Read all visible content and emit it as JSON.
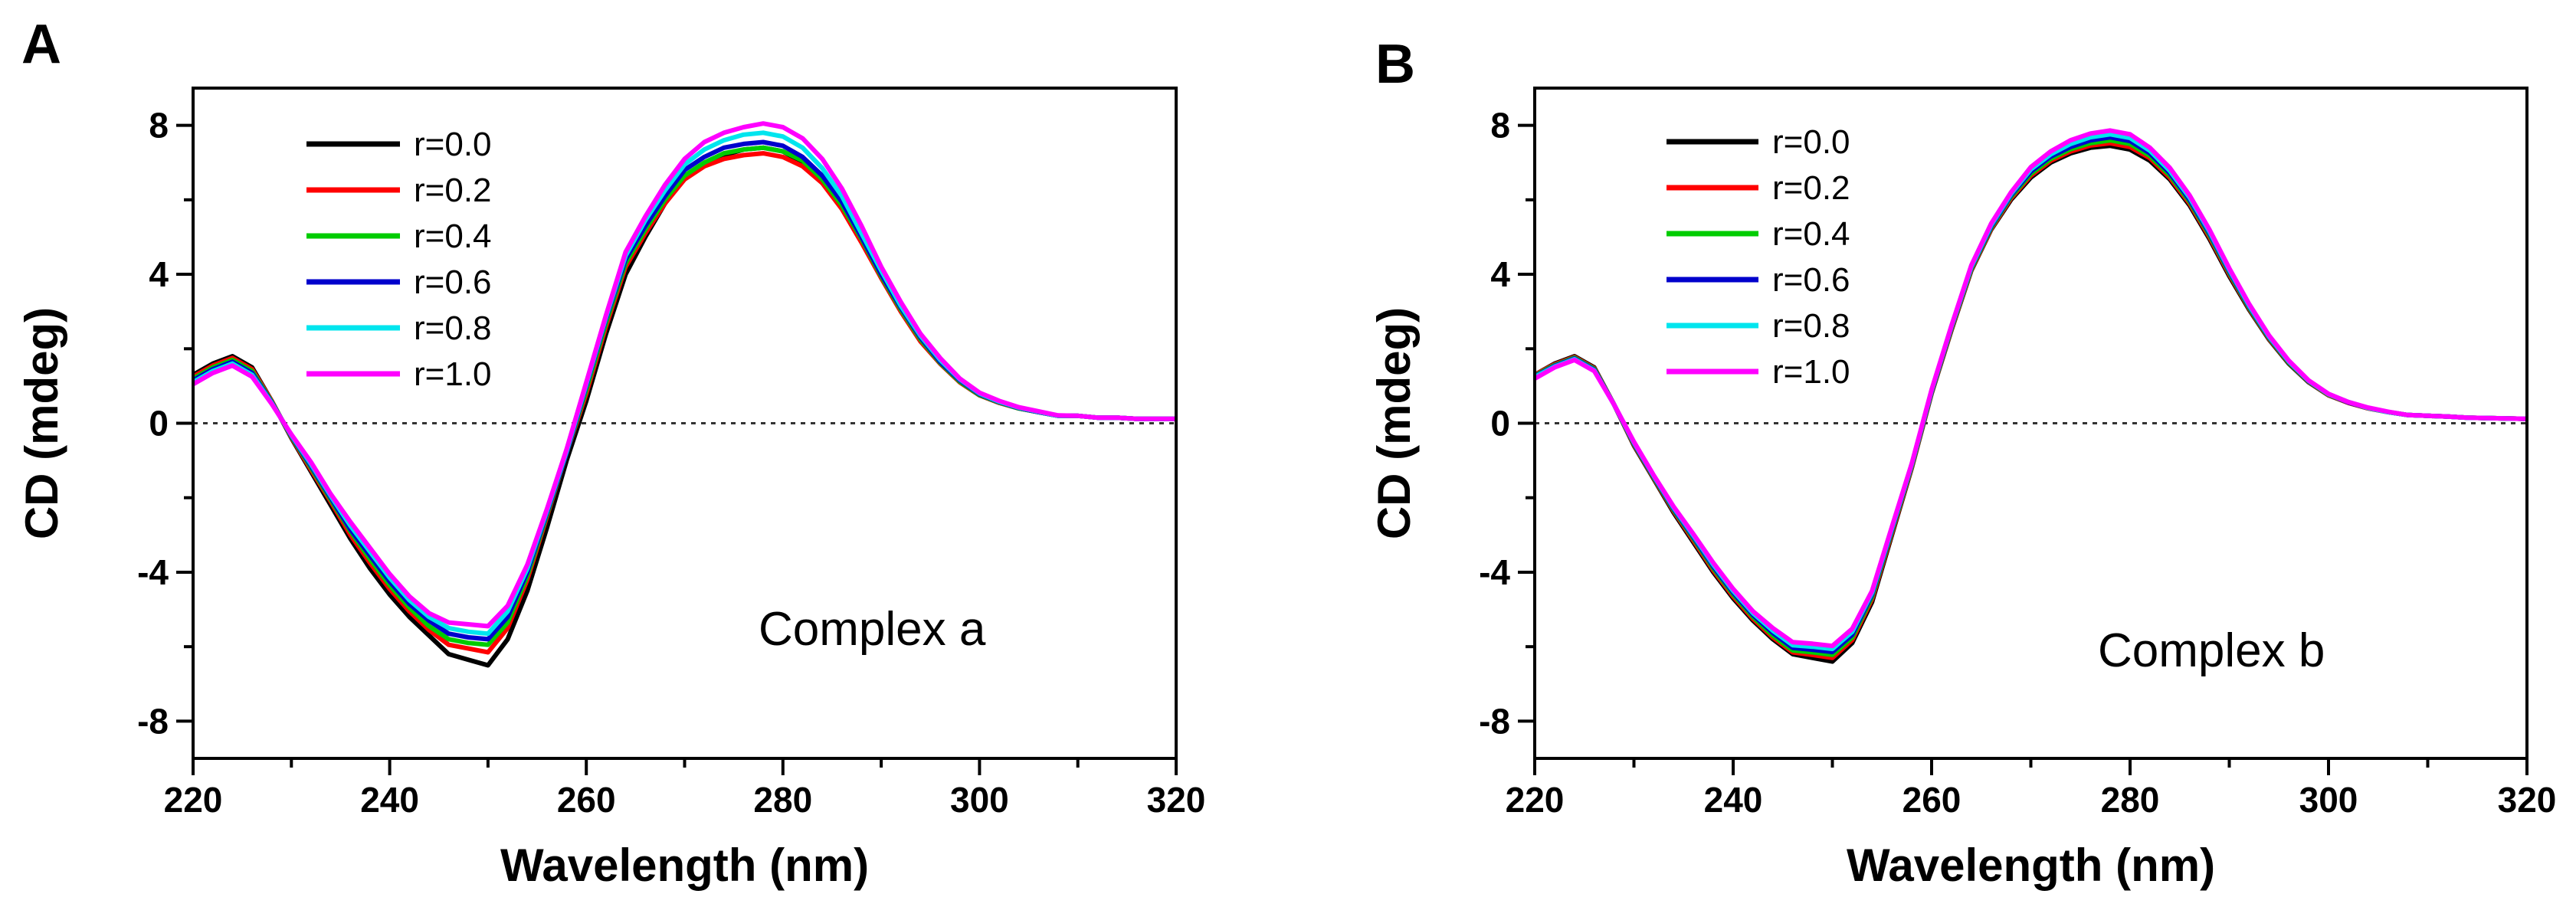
{
  "chart_data": [
    {
      "type": "line",
      "panel_label": "A",
      "xlabel": "Wavelength (nm)",
      "ylabel": "CD (mdeg)",
      "xlim": [
        220,
        320
      ],
      "ylim": [
        -9,
        9
      ],
      "xticks": [
        220,
        240,
        260,
        280,
        300,
        320
      ],
      "yticks": [
        -8,
        -4,
        0,
        4,
        8
      ],
      "grid": false,
      "zero_line": true,
      "legend_position": "top-left",
      "annotation": "Complex a",
      "x": [
        220,
        222,
        224,
        226,
        228,
        230,
        232,
        234,
        236,
        238,
        240,
        242,
        244,
        246,
        248,
        250,
        252,
        254,
        256,
        258,
        260,
        262,
        264,
        266,
        268,
        270,
        272,
        274,
        276,
        278,
        280,
        282,
        284,
        286,
        288,
        290,
        292,
        294,
        296,
        298,
        300,
        302,
        304,
        306,
        308,
        310,
        312,
        314,
        316,
        318,
        320
      ],
      "series": [
        {
          "name": "r=0.0",
          "color": "#000000",
          "values": [
            1.3,
            1.6,
            1.8,
            1.5,
            0.6,
            -0.4,
            -1.3,
            -2.2,
            -3.1,
            -3.9,
            -4.6,
            -5.2,
            -5.7,
            -6.2,
            -6.35,
            -6.5,
            -5.8,
            -4.5,
            -2.8,
            -1.0,
            0.6,
            2.4,
            4.0,
            5.0,
            5.9,
            6.6,
            6.95,
            7.2,
            7.35,
            7.4,
            7.3,
            7.0,
            6.5,
            5.8,
            4.9,
            3.9,
            3.0,
            2.2,
            1.6,
            1.1,
            0.75,
            0.55,
            0.4,
            0.3,
            0.2,
            0.2,
            0.15,
            0.15,
            0.12,
            0.12,
            0.12
          ]
        },
        {
          "name": "r=0.2",
          "color": "#ff0000",
          "values": [
            1.25,
            1.55,
            1.75,
            1.45,
            0.6,
            -0.38,
            -1.25,
            -2.1,
            -3.0,
            -3.75,
            -4.45,
            -5.05,
            -5.55,
            -5.95,
            -6.05,
            -6.15,
            -5.5,
            -4.2,
            -2.5,
            -0.8,
            0.8,
            2.6,
            4.2,
            5.1,
            5.9,
            6.55,
            6.9,
            7.1,
            7.2,
            7.25,
            7.15,
            6.9,
            6.45,
            5.75,
            4.85,
            3.9,
            3.0,
            2.2,
            1.6,
            1.1,
            0.75,
            0.55,
            0.4,
            0.3,
            0.2,
            0.2,
            0.15,
            0.15,
            0.12,
            0.12,
            0.12
          ]
        },
        {
          "name": "r=0.4",
          "color": "#00cc00",
          "values": [
            1.2,
            1.5,
            1.7,
            1.4,
            0.58,
            -0.36,
            -1.2,
            -2.05,
            -2.9,
            -3.65,
            -4.35,
            -4.95,
            -5.45,
            -5.8,
            -5.9,
            -5.95,
            -5.35,
            -4.1,
            -2.45,
            -0.8,
            0.9,
            2.7,
            4.3,
            5.2,
            6.0,
            6.65,
            7.0,
            7.25,
            7.35,
            7.4,
            7.3,
            7.05,
            6.55,
            5.85,
            4.95,
            3.95,
            3.05,
            2.25,
            1.62,
            1.12,
            0.76,
            0.56,
            0.4,
            0.3,
            0.2,
            0.2,
            0.15,
            0.15,
            0.12,
            0.12,
            0.12
          ]
        },
        {
          "name": "r=0.6",
          "color": "#0000cc",
          "values": [
            1.15,
            1.45,
            1.65,
            1.35,
            0.56,
            -0.34,
            -1.15,
            -2.0,
            -2.85,
            -3.55,
            -4.25,
            -4.85,
            -5.3,
            -5.65,
            -5.75,
            -5.8,
            -5.2,
            -4.0,
            -2.4,
            -0.8,
            1.0,
            2.8,
            4.4,
            5.3,
            6.1,
            6.8,
            7.15,
            7.4,
            7.5,
            7.55,
            7.45,
            7.15,
            6.65,
            5.95,
            5.0,
            4.0,
            3.1,
            2.3,
            1.65,
            1.15,
            0.78,
            0.57,
            0.41,
            0.3,
            0.2,
            0.2,
            0.15,
            0.15,
            0.12,
            0.12,
            0.12
          ]
        },
        {
          "name": "r=0.8",
          "color": "#00e5ee",
          "values": [
            1.1,
            1.4,
            1.6,
            1.3,
            0.54,
            -0.32,
            -1.1,
            -1.95,
            -2.75,
            -3.45,
            -4.15,
            -4.75,
            -5.2,
            -5.5,
            -5.6,
            -5.65,
            -5.05,
            -3.9,
            -2.35,
            -0.75,
            1.05,
            2.85,
            4.5,
            5.45,
            6.25,
            6.95,
            7.35,
            7.6,
            7.75,
            7.8,
            7.7,
            7.4,
            6.85,
            6.1,
            5.1,
            4.1,
            3.15,
            2.35,
            1.7,
            1.18,
            0.8,
            0.58,
            0.42,
            0.31,
            0.2,
            0.2,
            0.15,
            0.15,
            0.12,
            0.12,
            0.12
          ]
        },
        {
          "name": "r=1.0",
          "color": "#ff00ff",
          "values": [
            1.05,
            1.35,
            1.55,
            1.25,
            0.52,
            -0.3,
            -1.05,
            -1.9,
            -2.65,
            -3.35,
            -4.05,
            -4.65,
            -5.1,
            -5.35,
            -5.4,
            -5.45,
            -4.9,
            -3.8,
            -2.3,
            -0.7,
            1.1,
            2.9,
            4.6,
            5.55,
            6.4,
            7.1,
            7.55,
            7.8,
            7.95,
            8.05,
            7.95,
            7.65,
            7.1,
            6.3,
            5.3,
            4.2,
            3.25,
            2.4,
            1.75,
            1.2,
            0.82,
            0.6,
            0.43,
            0.32,
            0.21,
            0.2,
            0.15,
            0.15,
            0.12,
            0.12,
            0.12
          ]
        }
      ]
    },
    {
      "type": "line",
      "panel_label": "B",
      "xlabel": "Wavelength (nm)",
      "ylabel": "CD (mdeg)",
      "xlim": [
        220,
        320
      ],
      "ylim": [
        -9,
        9
      ],
      "xticks": [
        220,
        240,
        260,
        280,
        300,
        320
      ],
      "yticks": [
        -8,
        -4,
        0,
        4,
        8
      ],
      "grid": false,
      "zero_line": true,
      "legend_position": "top-left",
      "annotation": "Complex b",
      "x": [
        220,
        222,
        224,
        226,
        228,
        230,
        232,
        234,
        236,
        238,
        240,
        242,
        244,
        246,
        248,
        250,
        252,
        254,
        256,
        258,
        260,
        262,
        264,
        266,
        268,
        270,
        272,
        274,
        276,
        278,
        280,
        282,
        284,
        286,
        288,
        290,
        292,
        294,
        296,
        298,
        300,
        302,
        304,
        306,
        308,
        310,
        312,
        314,
        316,
        318,
        320
      ],
      "series": [
        {
          "name": "r=0.0",
          "color": "#000000",
          "values": [
            1.3,
            1.6,
            1.8,
            1.5,
            0.5,
            -0.6,
            -1.5,
            -2.4,
            -3.2,
            -4.0,
            -4.7,
            -5.3,
            -5.8,
            -6.2,
            -6.3,
            -6.4,
            -5.9,
            -4.8,
            -3.0,
            -1.2,
            0.8,
            2.5,
            4.1,
            5.2,
            6.0,
            6.6,
            7.0,
            7.25,
            7.4,
            7.45,
            7.35,
            7.05,
            6.55,
            5.85,
            4.95,
            3.95,
            3.05,
            2.25,
            1.6,
            1.1,
            0.75,
            0.55,
            0.4,
            0.3,
            0.22,
            0.2,
            0.18,
            0.15,
            0.14,
            0.13,
            0.12
          ]
        },
        {
          "name": "r=0.2",
          "color": "#ff0000",
          "values": [
            1.3,
            1.58,
            1.78,
            1.48,
            0.5,
            -0.58,
            -1.48,
            -2.36,
            -3.15,
            -3.95,
            -4.65,
            -5.25,
            -5.75,
            -6.15,
            -6.22,
            -6.3,
            -5.82,
            -4.72,
            -2.95,
            -1.18,
            0.82,
            2.52,
            4.12,
            5.22,
            6.04,
            6.65,
            7.05,
            7.3,
            7.46,
            7.52,
            7.42,
            7.12,
            6.6,
            5.9,
            5.0,
            4.0,
            3.08,
            2.27,
            1.62,
            1.11,
            0.76,
            0.55,
            0.4,
            0.3,
            0.22,
            0.2,
            0.18,
            0.15,
            0.14,
            0.13,
            0.12
          ]
        },
        {
          "name": "r=0.4",
          "color": "#00cc00",
          "values": [
            1.28,
            1.56,
            1.76,
            1.46,
            0.5,
            -0.56,
            -1.46,
            -2.33,
            -3.1,
            -3.9,
            -4.6,
            -5.2,
            -5.7,
            -6.1,
            -6.15,
            -6.22,
            -5.75,
            -4.66,
            -2.9,
            -1.15,
            0.84,
            2.55,
            4.15,
            5.25,
            6.08,
            6.7,
            7.1,
            7.36,
            7.52,
            7.6,
            7.5,
            7.18,
            6.66,
            5.95,
            5.05,
            4.04,
            3.1,
            2.29,
            1.63,
            1.12,
            0.77,
            0.56,
            0.41,
            0.3,
            0.22,
            0.2,
            0.18,
            0.15,
            0.14,
            0.13,
            0.12
          ]
        },
        {
          "name": "r=0.6",
          "color": "#0000cc",
          "values": [
            1.26,
            1.54,
            1.74,
            1.44,
            0.5,
            -0.54,
            -1.44,
            -2.3,
            -3.06,
            -3.85,
            -4.55,
            -5.15,
            -5.63,
            -6.03,
            -6.08,
            -6.14,
            -5.68,
            -4.6,
            -2.86,
            -1.12,
            0.86,
            2.58,
            4.18,
            5.28,
            6.12,
            6.76,
            7.16,
            7.42,
            7.6,
            7.68,
            7.58,
            7.25,
            6.72,
            6.0,
            5.1,
            4.08,
            3.13,
            2.31,
            1.65,
            1.13,
            0.78,
            0.56,
            0.41,
            0.3,
            0.22,
            0.2,
            0.18,
            0.15,
            0.14,
            0.13,
            0.12
          ]
        },
        {
          "name": "r=0.8",
          "color": "#00e5ee",
          "values": [
            1.24,
            1.52,
            1.72,
            1.42,
            0.5,
            -0.52,
            -1.42,
            -2.27,
            -3.02,
            -3.8,
            -4.5,
            -5.1,
            -5.57,
            -5.96,
            -6.0,
            -6.06,
            -5.6,
            -4.55,
            -2.82,
            -1.1,
            0.88,
            2.6,
            4.2,
            5.32,
            6.16,
            6.82,
            7.22,
            7.5,
            7.68,
            7.76,
            7.66,
            7.32,
            6.78,
            6.06,
            5.15,
            4.12,
            3.16,
            2.33,
            1.66,
            1.14,
            0.78,
            0.57,
            0.41,
            0.3,
            0.22,
            0.2,
            0.18,
            0.15,
            0.14,
            0.13,
            0.12
          ]
        },
        {
          "name": "r=1.0",
          "color": "#ff00ff",
          "values": [
            1.2,
            1.5,
            1.7,
            1.4,
            0.5,
            -0.5,
            -1.4,
            -2.24,
            -2.98,
            -3.75,
            -4.45,
            -5.05,
            -5.5,
            -5.88,
            -5.92,
            -5.98,
            -5.52,
            -4.5,
            -2.78,
            -1.08,
            0.9,
            2.62,
            4.24,
            5.36,
            6.2,
            6.88,
            7.3,
            7.6,
            7.78,
            7.86,
            7.76,
            7.4,
            6.86,
            6.12,
            5.2,
            4.16,
            3.2,
            2.36,
            1.68,
            1.15,
            0.79,
            0.57,
            0.42,
            0.31,
            0.22,
            0.2,
            0.18,
            0.15,
            0.14,
            0.13,
            0.12
          ]
        }
      ]
    }
  ]
}
